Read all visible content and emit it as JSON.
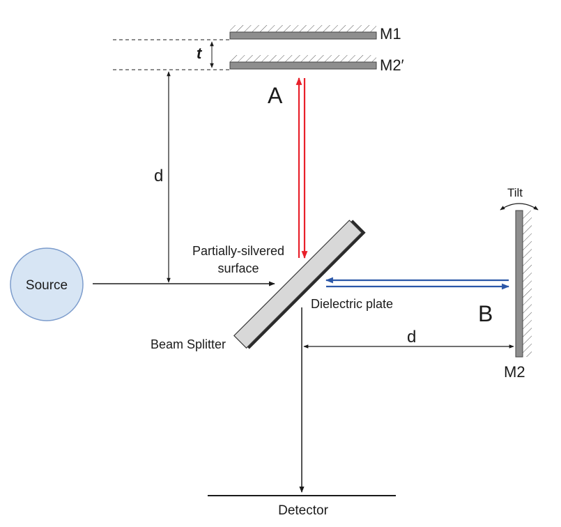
{
  "labels": {
    "m1": "M1",
    "m2_prime": "M2′",
    "t": "t",
    "a": "A",
    "b": "B",
    "d_vertical": "d",
    "d_horizontal": "d",
    "tilt": "Tilt",
    "partially_silvered_line1": "Partially-silvered",
    "partially_silvered_line2": "surface",
    "source": "Source",
    "dielectric_plate": "Dielectric plate",
    "beam_splitter": "Beam Splitter",
    "m2": "M2",
    "detector": "Detector"
  },
  "colors": {
    "beam_a": "#e8202a",
    "beam_b": "#2b57a8",
    "source_fill": "#d7e5f4",
    "source_stroke": "#7c9ccc",
    "mirror_fill": "#8e8e8e",
    "splitter_fill": "#d8d8d8",
    "line": "#1a1a1a"
  }
}
